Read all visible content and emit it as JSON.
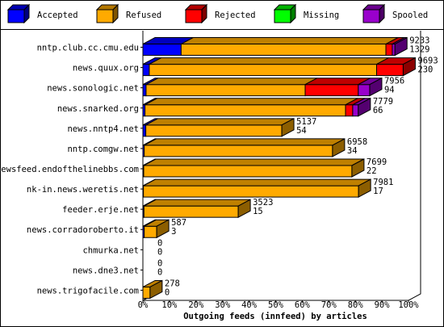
{
  "chart_data": {
    "type": "bar3d",
    "orientation": "horizontal",
    "stacked": true,
    "x_label": "Outgoing feeds (innfeed) by articles",
    "categories": [
      "nntp.club.cc.cmu.edu",
      "news.quux.org",
      "news.sonologic.net",
      "news.snarked.org",
      "news.nntp4.net",
      "nntp.comgw.net",
      "newsfeed.endofthelinebbs.com",
      "nk-in.news.weretis.net",
      "feeder.erje.net",
      "news.corradoroberto.it",
      "chmurka.net",
      "news.dne3.net",
      "news.trigofacile.com"
    ],
    "series": [
      {
        "name": "Accepted",
        "color": "#0000ff",
        "values": [
          14.4,
          2.4,
          1.2,
          0.8,
          1.1,
          0.5,
          0.3,
          0.2,
          0.4,
          0.5,
          0,
          0,
          0
        ]
      },
      {
        "name": "Refused",
        "color": "#ffaa00",
        "values": [
          77.1,
          85.6,
          59.9,
          75.5,
          51.2,
          70.9,
          78.4,
          81.0,
          35.5,
          4.7,
          0,
          0,
          2.7
        ]
      },
      {
        "name": "Rejected",
        "color": "#ff0000",
        "values": [
          2.4,
          10.0,
          20.0,
          2.7,
          0,
          0,
          0,
          0,
          0,
          0,
          0,
          0,
          0
        ]
      },
      {
        "name": "Missing",
        "color": "#00ff00",
        "values": [
          0,
          0,
          0,
          0,
          0,
          0,
          0,
          0,
          0,
          0,
          0,
          0,
          0
        ]
      },
      {
        "name": "Spooled",
        "color": "#9900cc",
        "values": [
          1.0,
          0,
          4.3,
          2.1,
          0,
          0,
          0,
          0,
          0,
          0,
          0,
          0,
          0
        ]
      }
    ],
    "offered": [
      9233,
      9693,
      7956,
      7779,
      5137,
      6958,
      7699,
      7981,
      3523,
      587,
      0,
      0,
      278
    ],
    "accepted_count": [
      1329,
      230,
      94,
      66,
      54,
      34,
      22,
      17,
      15,
      3,
      0,
      0,
      0
    ],
    "xlim": [
      0,
      100
    ],
    "xticks": [
      {
        "value": 0,
        "label": "0%"
      },
      {
        "value": 10,
        "label": "10%"
      },
      {
        "value": 20,
        "label": "20%"
      },
      {
        "value": 30,
        "label": "30%"
      },
      {
        "value": 40,
        "label": "40%"
      },
      {
        "value": 50,
        "label": "50%"
      },
      {
        "value": 60,
        "label": "60%"
      },
      {
        "value": 70,
        "label": "70%"
      },
      {
        "value": 80,
        "label": "80%"
      },
      {
        "value": 90,
        "label": "90%"
      },
      {
        "value": 100,
        "label": "100%"
      }
    ],
    "legend": "top"
  }
}
